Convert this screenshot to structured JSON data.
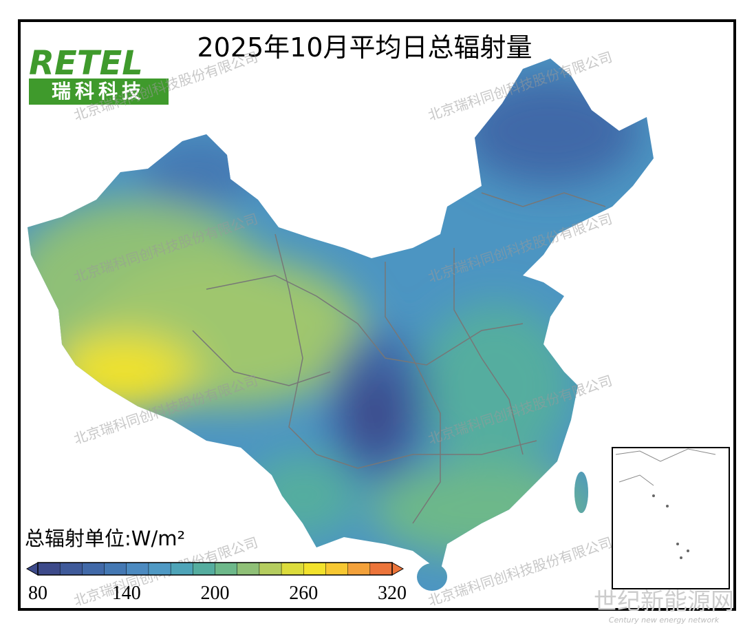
{
  "title": "2025年10月平均日总辐射量",
  "logo": {
    "brand": "RETEL",
    "name": "瑞科科技"
  },
  "watermark": "北京瑞科同创科技股份有限公司",
  "unit_label": "总辐射单位:W/m²",
  "colorbar": {
    "lim": [
      80,
      320
    ],
    "ticks": [
      80,
      140,
      200,
      260,
      320
    ],
    "colors": [
      "#3d4a8a",
      "#3f5a9a",
      "#4169a8",
      "#4478b3",
      "#4c8ac0",
      "#4f99c4",
      "#4ea4b8",
      "#55ad9f",
      "#6db88a",
      "#8fc077",
      "#b5cd5f",
      "#dcdc3c",
      "#f2e22c",
      "#f7c832",
      "#f3a13a",
      "#ec743a"
    ]
  },
  "source_watermark": {
    "name": "世纪新能源网",
    "english": "Century new energy network"
  }
}
